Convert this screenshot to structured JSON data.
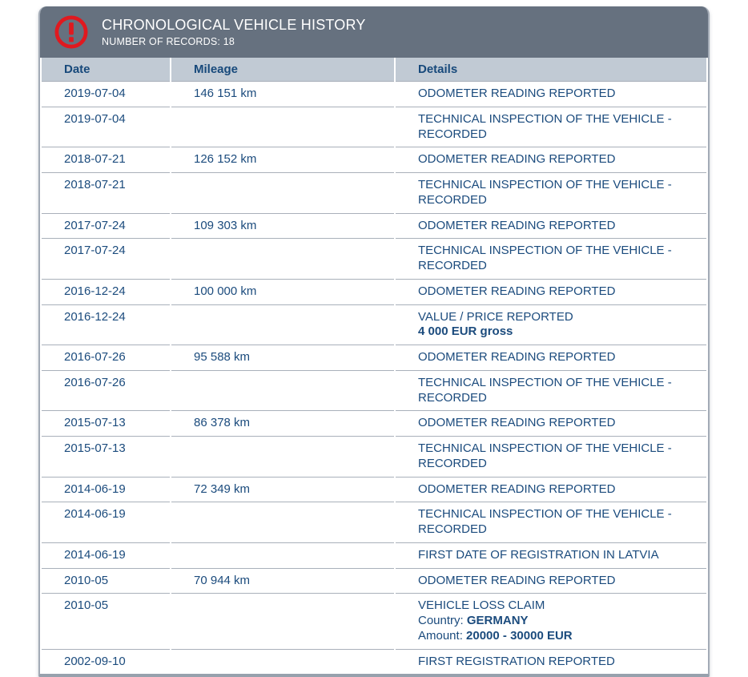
{
  "panel": {
    "title": "CHRONOLOGICAL VEHICLE HISTORY",
    "records_label": "NUMBER OF RECORDS: ",
    "records_count": "18",
    "icon": "alert-exclamation-icon"
  },
  "colors": {
    "header_bg": "#66717f",
    "column_header_bg": "#c1cad4",
    "text_navy": "#1b4b7d",
    "alert_red": "#e0191f",
    "panel_border": "#a3abb6",
    "row_separator": "#a9b0ba"
  },
  "table": {
    "columns": [
      "Date",
      "Mileage",
      "Details"
    ],
    "rows": [
      {
        "date": "2019-07-04",
        "mileage": "146 151 km",
        "details": [
          [
            {
              "text": "ODOMETER READING REPORTED",
              "bold": false
            }
          ]
        ]
      },
      {
        "date": "2019-07-04",
        "mileage": "",
        "details": [
          [
            {
              "text": "TECHNICAL INSPECTION OF THE VEHICLE - RECORDED",
              "bold": false
            }
          ]
        ]
      },
      {
        "date": "2018-07-21",
        "mileage": "126 152 km",
        "details": [
          [
            {
              "text": "ODOMETER READING REPORTED",
              "bold": false
            }
          ]
        ]
      },
      {
        "date": "2018-07-21",
        "mileage": "",
        "details": [
          [
            {
              "text": "TECHNICAL INSPECTION OF THE VEHICLE - RECORDED",
              "bold": false
            }
          ]
        ]
      },
      {
        "date": "2017-07-24",
        "mileage": "109 303 km",
        "details": [
          [
            {
              "text": "ODOMETER READING REPORTED",
              "bold": false
            }
          ]
        ]
      },
      {
        "date": "2017-07-24",
        "mileage": "",
        "details": [
          [
            {
              "text": "TECHNICAL INSPECTION OF THE VEHICLE - RECORDED",
              "bold": false
            }
          ]
        ]
      },
      {
        "date": "2016-12-24",
        "mileage": "100 000 km",
        "details": [
          [
            {
              "text": "ODOMETER READING REPORTED",
              "bold": false
            }
          ]
        ]
      },
      {
        "date": "2016-12-24",
        "mileage": "",
        "details": [
          [
            {
              "text": "VALUE / PRICE REPORTED",
              "bold": false
            }
          ],
          [
            {
              "text": "4 000 EUR gross",
              "bold": true
            }
          ]
        ]
      },
      {
        "date": "2016-07-26",
        "mileage": "95 588 km",
        "details": [
          [
            {
              "text": "ODOMETER READING REPORTED",
              "bold": false
            }
          ]
        ]
      },
      {
        "date": "2016-07-26",
        "mileage": "",
        "details": [
          [
            {
              "text": "TECHNICAL INSPECTION OF THE VEHICLE - RECORDED",
              "bold": false
            }
          ]
        ]
      },
      {
        "date": "2015-07-13",
        "mileage": "86 378 km",
        "details": [
          [
            {
              "text": "ODOMETER READING REPORTED",
              "bold": false
            }
          ]
        ]
      },
      {
        "date": "2015-07-13",
        "mileage": "",
        "details": [
          [
            {
              "text": "TECHNICAL INSPECTION OF THE VEHICLE - RECORDED",
              "bold": false
            }
          ]
        ]
      },
      {
        "date": "2014-06-19",
        "mileage": "72 349 km",
        "details": [
          [
            {
              "text": "ODOMETER READING REPORTED",
              "bold": false
            }
          ]
        ]
      },
      {
        "date": "2014-06-19",
        "mileage": "",
        "details": [
          [
            {
              "text": "TECHNICAL INSPECTION OF THE VEHICLE - RECORDED",
              "bold": false
            }
          ]
        ]
      },
      {
        "date": "2014-06-19",
        "mileage": "",
        "details": [
          [
            {
              "text": "FIRST DATE OF REGISTRATION IN LATVIA",
              "bold": false
            }
          ]
        ]
      },
      {
        "date": "2010-05",
        "mileage": "70 944 km",
        "details": [
          [
            {
              "text": "ODOMETER READING REPORTED",
              "bold": false
            }
          ]
        ]
      },
      {
        "date": "2010-05",
        "mileage": "",
        "details": [
          [
            {
              "text": "VEHICLE LOSS CLAIM",
              "bold": false
            }
          ],
          [
            {
              "text": "Country: ",
              "bold": false
            },
            {
              "text": "GERMANY",
              "bold": true
            }
          ],
          [
            {
              "text": "Amount: ",
              "bold": false
            },
            {
              "text": "20000 - 30000 EUR",
              "bold": true
            }
          ]
        ]
      },
      {
        "date": "2002-09-10",
        "mileage": "",
        "details": [
          [
            {
              "text": "FIRST REGISTRATION REPORTED",
              "bold": false
            }
          ]
        ]
      }
    ]
  }
}
